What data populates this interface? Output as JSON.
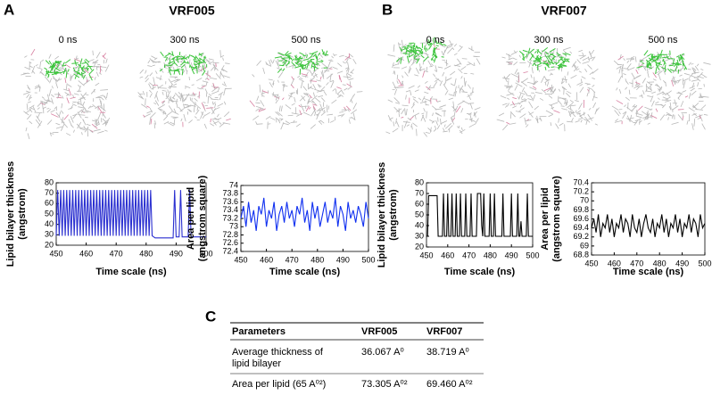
{
  "panels": [
    {
      "label": "A",
      "title": "VRF005",
      "times": [
        "0 ns",
        "300 ns",
        "500 ns"
      ]
    },
    {
      "label": "B",
      "title": "VRF007",
      "times": [
        "0 ns",
        "300 ns",
        "500 ns"
      ]
    }
  ],
  "chart_data": [
    {
      "type": "line",
      "xlabel": "Time scale (ns)",
      "ylabel": [
        "Lipid bilayer thickness",
        "(angstrom)"
      ],
      "xlim": [
        450,
        500
      ],
      "xticks": [
        450,
        460,
        470,
        480,
        490,
        500
      ],
      "ylim": [
        20,
        80
      ],
      "yticks": [
        20,
        30,
        40,
        50,
        60,
        70,
        80
      ],
      "x": [
        450,
        450.5,
        451,
        451.5,
        452,
        452.5,
        453,
        453.5,
        454,
        454.5,
        455,
        455.5,
        456,
        456.5,
        457,
        457.5,
        458,
        458.5,
        459,
        459.5,
        460,
        460.5,
        461,
        461.5,
        462,
        462.5,
        463,
        463.5,
        464,
        464.5,
        465,
        465.5,
        466,
        466.5,
        467,
        467.5,
        468,
        468.5,
        469,
        469.5,
        470,
        470.5,
        471,
        471.5,
        472,
        472.5,
        473,
        473.5,
        474,
        474.5,
        475,
        475.5,
        476,
        476.5,
        477,
        477.5,
        478,
        478.5,
        479,
        479.5,
        480,
        480.5,
        481,
        481.5,
        482,
        483,
        489,
        489.5,
        490,
        491,
        491.5,
        492,
        494,
        494.5,
        495,
        500
      ],
      "series": [
        {
          "color": "#2a2fd0",
          "values": [
            29,
            73,
            29,
            73,
            29,
            73,
            29,
            73,
            29,
            73,
            29,
            73,
            29,
            73,
            29,
            73,
            29,
            73,
            29,
            73,
            29,
            73,
            29,
            73,
            29,
            73,
            29,
            73,
            29,
            73,
            29,
            73,
            29,
            73,
            29,
            73,
            29,
            73,
            29,
            73,
            29,
            73,
            29,
            73,
            29,
            73,
            29,
            73,
            29,
            73,
            29,
            73,
            29,
            73,
            29,
            73,
            29,
            73,
            29,
            73,
            29,
            73,
            29,
            73,
            29,
            27,
            27,
            73,
            28,
            28,
            73,
            28,
            28,
            73,
            28,
            28
          ]
        }
      ]
    },
    {
      "type": "line",
      "xlabel": "Time scale (ns)",
      "ylabel": [
        "Area per lipid",
        "(angstrom square)"
      ],
      "xlim": [
        450,
        500
      ],
      "xticks": [
        450,
        460,
        470,
        480,
        490,
        500
      ],
      "ylim": [
        72.4,
        74
      ],
      "yticks": [
        72.4,
        72.6,
        72.8,
        73,
        73.2,
        73.4,
        73.6,
        73.8,
        74
      ],
      "x": [
        450,
        451,
        452,
        453,
        454,
        455,
        456,
        457,
        458,
        459,
        460,
        461,
        462,
        463,
        464,
        465,
        466,
        467,
        468,
        469,
        470,
        471,
        472,
        473,
        474,
        475,
        476,
        477,
        478,
        479,
        480,
        481,
        482,
        483,
        484,
        485,
        486,
        487,
        488,
        489,
        490,
        491,
        492,
        493,
        494,
        495,
        496,
        497,
        498,
        499,
        500
      ],
      "series": [
        {
          "color": "#1030f0",
          "values": [
            73.2,
            73.5,
            73.0,
            73.6,
            73.1,
            73.4,
            72.9,
            73.5,
            73.3,
            73.7,
            73.0,
            73.4,
            73.2,
            73.6,
            72.9,
            73.3,
            73.5,
            73.1,
            73.6,
            73.2,
            73.4,
            73.0,
            73.5,
            73.3,
            73.7,
            73.1,
            73.4,
            72.9,
            73.6,
            73.2,
            73.5,
            73.0,
            73.3,
            73.6,
            73.1,
            73.4,
            73.2,
            73.7,
            73.0,
            73.5,
            73.3,
            72.9,
            73.6,
            73.2,
            73.4,
            73.1,
            73.5,
            73.3,
            73.0,
            73.6,
            73.2
          ]
        }
      ]
    },
    {
      "type": "line",
      "xlabel": "Time scale (ns)",
      "ylabel": [
        "Lipid bilayer thickness",
        "(angstrom)"
      ],
      "xlim": [
        450,
        500
      ],
      "xticks": [
        450,
        460,
        470,
        480,
        490,
        500
      ],
      "ylim": [
        20,
        80
      ],
      "yticks": [
        20,
        30,
        40,
        50,
        60,
        70,
        80
      ],
      "x": [
        450,
        450.5,
        451,
        455,
        455.5,
        457.5,
        458,
        458.5,
        459.5,
        460,
        460.5,
        461.5,
        462,
        462.5,
        463.5,
        464,
        464.5,
        465.5,
        466,
        466.5,
        468,
        468.5,
        469,
        470.5,
        471,
        471.5,
        473.5,
        474,
        475.5,
        476,
        476.5,
        477,
        477.5,
        479.5,
        480,
        480.5,
        481.5,
        482,
        482.5,
        485.5,
        486,
        486.5,
        489.5,
        490,
        490.5,
        492.5,
        493,
        493.5,
        494,
        494.5,
        495,
        497,
        497.5,
        498,
        500
      ],
      "series": [
        {
          "color": "#000000",
          "values": [
            30,
            30,
            68,
            68,
            30,
            30,
            70,
            30,
            30,
            70,
            30,
            30,
            70,
            30,
            30,
            70,
            30,
            30,
            70,
            30,
            30,
            70,
            30,
            30,
            70,
            30,
            30,
            70,
            70,
            40,
            30,
            70,
            30,
            30,
            70,
            30,
            30,
            70,
            30,
            30,
            70,
            30,
            30,
            70,
            30,
            30,
            70,
            30,
            30,
            44,
            30,
            30,
            70,
            30,
            30
          ]
        }
      ]
    },
    {
      "type": "line",
      "xlabel": "Time scale (ns)",
      "ylabel": [
        "Area per lipid",
        "(angstrom square)"
      ],
      "xlim": [
        450,
        500
      ],
      "xticks": [
        450,
        460,
        470,
        480,
        490,
        500
      ],
      "ylim": [
        68.8,
        70.4
      ],
      "yticks": [
        68.8,
        69,
        69.2,
        69.4,
        69.6,
        69.8,
        70,
        70.2,
        70.4
      ],
      "x": [
        450,
        451,
        452,
        453,
        454,
        455,
        456,
        457,
        458,
        459,
        460,
        461,
        462,
        463,
        464,
        465,
        466,
        467,
        468,
        469,
        470,
        471,
        472,
        473,
        474,
        475,
        476,
        477,
        478,
        479,
        480,
        481,
        482,
        483,
        484,
        485,
        486,
        487,
        488,
        489,
        490,
        491,
        492,
        493,
        494,
        495,
        496,
        497,
        498,
        499,
        500
      ],
      "series": [
        {
          "color": "#000000",
          "values": [
            69.4,
            69.6,
            69.3,
            69.7,
            69.2,
            69.5,
            69.4,
            69.7,
            69.3,
            69.6,
            69.2,
            69.5,
            69.4,
            69.7,
            69.3,
            69.6,
            69.5,
            69.2,
            69.7,
            69.4,
            69.3,
            69.6,
            69.2,
            69.5,
            69.7,
            69.4,
            69.3,
            69.6,
            69.2,
            69.5,
            69.4,
            69.7,
            69.3,
            69.6,
            69.2,
            69.5,
            69.4,
            69.7,
            69.3,
            69.6,
            69.2,
            69.5,
            69.4,
            69.7,
            69.3,
            69.6,
            69.5,
            69.2,
            69.7,
            69.4,
            69.5
          ]
        }
      ]
    }
  ],
  "table": {
    "label": "C",
    "header": [
      "Parameters",
      "VRF005",
      "VRF007"
    ],
    "rows": [
      [
        [
          "Average thickness of",
          "lipid bilayer"
        ],
        "36.067 A⁰",
        "38.719 A⁰"
      ],
      [
        [
          "Area per lipid (65 A⁰²)"
        ],
        "73.305 A⁰²",
        "69.460 A⁰²"
      ]
    ]
  }
}
